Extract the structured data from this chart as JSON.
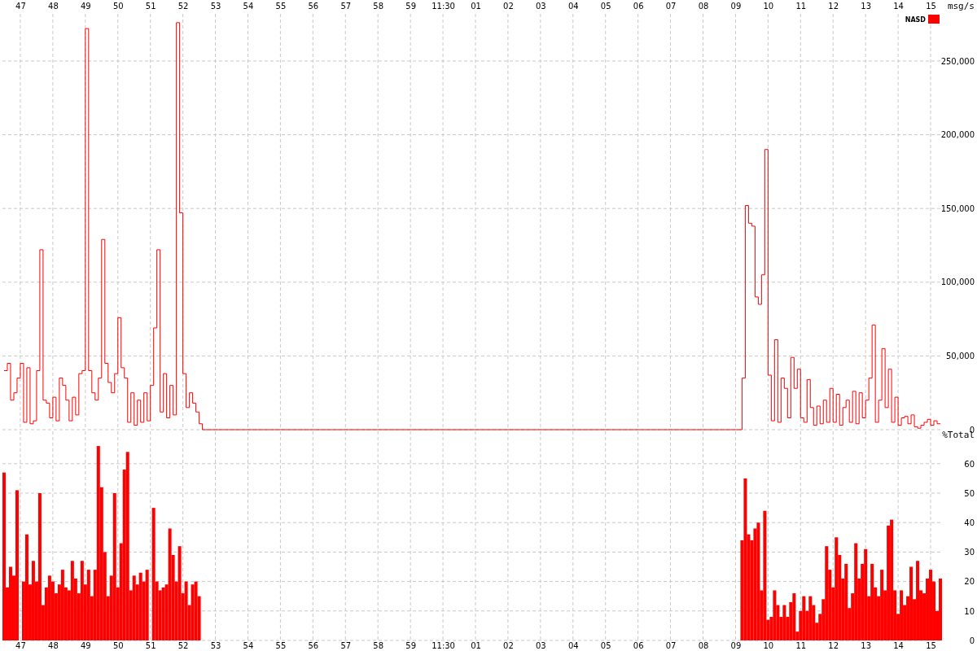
{
  "chart_data": [
    {
      "type": "step",
      "ylabel": "msg/s",
      "legend": "top right",
      "grid": true,
      "categories": [
        null,
        null,
        null,
        null,
        null,
        "47",
        null,
        null,
        null,
        null,
        null,
        null,
        null,
        null,
        null,
        "48",
        null,
        null,
        null,
        null,
        null,
        null,
        null,
        null,
        null,
        "49",
        null,
        null,
        null,
        null,
        null,
        null,
        null,
        null,
        null,
        "50",
        null,
        null,
        null,
        null,
        null,
        null,
        null,
        null,
        null,
        "51",
        null,
        null,
        null,
        null,
        null,
        null,
        null,
        null,
        null,
        "52",
        null,
        null,
        null,
        null,
        null,
        null,
        null,
        null,
        null,
        "53",
        null,
        null,
        null,
        null,
        null,
        null,
        null,
        null,
        null,
        "54",
        null,
        null,
        null,
        null,
        null,
        null,
        null,
        null,
        null,
        "55",
        null,
        null,
        null,
        null,
        null,
        null,
        null,
        null,
        null,
        "56",
        null,
        null,
        null,
        null,
        null,
        null,
        null,
        null,
        null,
        "57",
        null,
        null,
        null,
        null,
        null,
        null,
        null,
        null,
        null,
        "58",
        null,
        null,
        null,
        null,
        null,
        null,
        null,
        null,
        null,
        "59",
        null,
        null,
        null,
        null,
        null,
        null,
        null,
        null,
        null,
        "11:30",
        null,
        null,
        null,
        null,
        null,
        null,
        null,
        null,
        null,
        "01",
        null,
        null,
        null,
        null,
        null,
        null,
        null,
        null,
        null,
        "02",
        null,
        null,
        null,
        null,
        null,
        null,
        null,
        null,
        null,
        "03",
        null,
        null,
        null,
        null,
        null,
        null,
        null,
        null,
        null,
        "04",
        null,
        null,
        null,
        null,
        null,
        null,
        null,
        null,
        null,
        "05",
        null,
        null,
        null,
        null,
        null,
        null,
        null,
        null,
        null,
        "06",
        null,
        null,
        null,
        null,
        null,
        null,
        null,
        null,
        null,
        "07",
        null,
        null,
        null,
        null,
        null,
        null,
        null,
        null,
        null,
        "08",
        null,
        null,
        null,
        null,
        null,
        null,
        null,
        null,
        null,
        "09",
        null,
        null,
        null,
        null,
        null,
        null,
        null,
        null,
        null,
        "10",
        null,
        null,
        null,
        null,
        null,
        null,
        null,
        null,
        null,
        "11",
        null,
        null,
        null,
        null,
        null,
        null,
        null,
        null,
        null,
        "12",
        null,
        null,
        null,
        null,
        null,
        null,
        null,
        null,
        null,
        "13",
        null,
        null,
        null,
        null,
        null,
        null,
        null,
        null,
        null,
        "14",
        null,
        null,
        null,
        null,
        null,
        null,
        null,
        null,
        null,
        "15",
        null,
        null,
        null
      ],
      "ylim": [
        0,
        282000
      ],
      "yticks": [
        {
          "value": 0,
          "label": "0"
        },
        {
          "value": 50000,
          "label": "50,000"
        },
        {
          "value": 100000,
          "label": "100,000"
        },
        {
          "value": 150000,
          "label": "150,000"
        },
        {
          "value": 200000,
          "label": "200,000"
        },
        {
          "value": 250000,
          "label": "250,000"
        }
      ],
      "series": [
        {
          "name": "NASD",
          "color": "#ff0000",
          "values": [
            40000,
            45000,
            20000,
            25000,
            35000,
            45000,
            5000,
            42000,
            4000,
            6000,
            40000,
            122000,
            20000,
            18000,
            8000,
            22000,
            6000,
            35000,
            30000,
            20000,
            6000,
            22000,
            10000,
            38000,
            40000,
            272000,
            40000,
            25000,
            20000,
            35000,
            129000,
            45000,
            32000,
            25000,
            38000,
            76000,
            42000,
            35000,
            5000,
            25000,
            3000,
            20000,
            5000,
            25000,
            6000,
            30000,
            69000,
            122000,
            12000,
            38000,
            8000,
            30000,
            10000,
            276000,
            147000,
            38000,
            15000,
            25000,
            18000,
            12000,
            4000,
            0,
            0,
            0,
            0,
            0,
            0,
            0,
            0,
            0,
            0,
            0,
            0,
            0,
            0,
            0,
            0,
            0,
            0,
            0,
            0,
            0,
            0,
            0,
            0,
            0,
            0,
            0,
            0,
            0,
            0,
            0,
            0,
            0,
            0,
            0,
            0,
            0,
            0,
            0,
            0,
            0,
            0,
            0,
            0,
            0,
            0,
            0,
            0,
            0,
            0,
            0,
            0,
            0,
            0,
            0,
            0,
            0,
            0,
            0,
            0,
            0,
            0,
            0,
            0,
            0,
            0,
            0,
            0,
            0,
            0,
            0,
            0,
            0,
            0,
            0,
            0,
            0,
            0,
            0,
            0,
            0,
            0,
            0,
            0,
            0,
            0,
            0,
            0,
            0,
            0,
            0,
            0,
            0,
            0,
            0,
            0,
            0,
            0,
            0,
            0,
            0,
            0,
            0,
            0,
            0,
            0,
            0,
            0,
            0,
            0,
            0,
            0,
            0,
            0,
            0,
            0,
            0,
            0,
            0,
            0,
            0,
            0,
            0,
            0,
            0,
            0,
            0,
            0,
            0,
            0,
            0,
            0,
            0,
            0,
            0,
            0,
            0,
            0,
            0,
            0,
            0,
            0,
            0,
            0,
            0,
            0,
            0,
            0,
            0,
            0,
            0,
            0,
            0,
            0,
            0,
            0,
            0,
            0,
            0,
            0,
            0,
            0,
            0,
            0,
            0,
            0,
            35000,
            152000,
            140000,
            138000,
            90000,
            85000,
            105000,
            190000,
            37000,
            6000,
            61000,
            5000,
            35000,
            28000,
            8000,
            49000,
            28000,
            41000,
            8000,
            5000,
            34000,
            15000,
            3000,
            16000,
            4000,
            20000,
            5000,
            28000,
            5000,
            24000,
            3000,
            15000,
            20000,
            5000,
            26000,
            4000,
            25000,
            8000,
            20000,
            35000,
            71000,
            5000,
            20000,
            55000,
            15000,
            41000,
            5000,
            22000,
            3000,
            8000,
            9000,
            4000,
            10000,
            2000,
            1000,
            3000,
            5000,
            7000,
            3000,
            6000,
            4000,
            4000
          ]
        }
      ]
    },
    {
      "type": "bar",
      "ylabel": "%Total",
      "grid": true,
      "categories": [
        null,
        null,
        null,
        null,
        null,
        "47",
        null,
        null,
        null,
        null,
        null,
        null,
        null,
        null,
        null,
        "48",
        null,
        null,
        null,
        null,
        null,
        null,
        null,
        null,
        null,
        "49",
        null,
        null,
        null,
        null,
        null,
        null,
        null,
        null,
        null,
        "50",
        null,
        null,
        null,
        null,
        null,
        null,
        null,
        null,
        null,
        "51",
        null,
        null,
        null,
        null,
        null,
        null,
        null,
        null,
        null,
        "52",
        null,
        null,
        null,
        null,
        null,
        null,
        null,
        null,
        null,
        "53",
        null,
        null,
        null,
        null,
        null,
        null,
        null,
        null,
        null,
        "54",
        null,
        null,
        null,
        null,
        null,
        null,
        null,
        null,
        null,
        "55",
        null,
        null,
        null,
        null,
        null,
        null,
        null,
        null,
        null,
        "56",
        null,
        null,
        null,
        null,
        null,
        null,
        null,
        null,
        null,
        "57",
        null,
        null,
        null,
        null,
        null,
        null,
        null,
        null,
        null,
        "58",
        null,
        null,
        null,
        null,
        null,
        null,
        null,
        null,
        null,
        "59",
        null,
        null,
        null,
        null,
        null,
        null,
        null,
        null,
        null,
        "11:30",
        null,
        null,
        null,
        null,
        null,
        null,
        null,
        null,
        null,
        "01",
        null,
        null,
        null,
        null,
        null,
        null,
        null,
        null,
        null,
        "02",
        null,
        null,
        null,
        null,
        null,
        null,
        null,
        null,
        null,
        "03",
        null,
        null,
        null,
        null,
        null,
        null,
        null,
        null,
        null,
        "04",
        null,
        null,
        null,
        null,
        null,
        null,
        null,
        null,
        null,
        "05",
        null,
        null,
        null,
        null,
        null,
        null,
        null,
        null,
        null,
        "06",
        null,
        null,
        null,
        null,
        null,
        null,
        null,
        null,
        null,
        "07",
        null,
        null,
        null,
        null,
        null,
        null,
        null,
        null,
        null,
        "08",
        null,
        null,
        null,
        null,
        null,
        null,
        null,
        null,
        null,
        "09",
        null,
        null,
        null,
        null,
        null,
        null,
        null,
        null,
        null,
        "10",
        null,
        null,
        null,
        null,
        null,
        null,
        null,
        null,
        null,
        "11",
        null,
        null,
        null,
        null,
        null,
        null,
        null,
        null,
        null,
        "12",
        null,
        null,
        null,
        null,
        null,
        null,
        null,
        null,
        null,
        "13",
        null,
        null,
        null,
        null,
        null,
        null,
        null,
        null,
        null,
        "14",
        null,
        null,
        null,
        null,
        null,
        null,
        null,
        null,
        null,
        "15",
        null,
        null,
        null
      ],
      "ylim": [
        0,
        71
      ],
      "yticks": [
        0,
        10,
        20,
        30,
        40,
        50,
        60
      ],
      "series": [
        {
          "color": "#ff0000",
          "values": [
            57,
            18,
            25,
            22,
            51,
            null,
            20,
            36,
            19,
            27,
            20,
            50,
            12,
            18,
            22,
            20,
            16,
            19,
            24,
            18,
            17,
            27,
            21,
            16,
            27,
            19,
            24,
            15,
            24,
            66,
            52,
            30,
            15,
            22,
            50,
            18,
            33,
            58,
            64,
            17,
            22,
            19,
            23,
            20,
            24,
            null,
            45,
            20,
            17,
            18,
            19,
            38,
            29,
            20,
            32,
            16,
            20,
            12,
            19,
            20,
            15,
            null,
            null,
            null,
            null,
            null,
            null,
            null,
            null,
            null,
            null,
            null,
            null,
            null,
            null,
            null,
            null,
            null,
            null,
            null,
            null,
            null,
            null,
            null,
            null,
            null,
            null,
            null,
            null,
            null,
            null,
            null,
            null,
            null,
            null,
            null,
            null,
            null,
            null,
            null,
            null,
            null,
            null,
            null,
            null,
            null,
            null,
            null,
            null,
            null,
            null,
            null,
            null,
            null,
            null,
            null,
            null,
            null,
            null,
            null,
            null,
            null,
            null,
            null,
            null,
            null,
            null,
            null,
            null,
            null,
            null,
            null,
            null,
            null,
            null,
            null,
            null,
            null,
            null,
            null,
            null,
            null,
            null,
            null,
            null,
            null,
            null,
            null,
            null,
            null,
            null,
            null,
            null,
            null,
            null,
            null,
            null,
            null,
            null,
            null,
            null,
            null,
            null,
            null,
            null,
            null,
            null,
            null,
            null,
            null,
            null,
            null,
            null,
            null,
            null,
            null,
            null,
            null,
            null,
            null,
            null,
            null,
            null,
            null,
            null,
            null,
            null,
            null,
            null,
            null,
            null,
            null,
            null,
            null,
            null,
            null,
            null,
            null,
            null,
            null,
            null,
            null,
            null,
            null,
            null,
            null,
            null,
            null,
            null,
            null,
            null,
            null,
            null,
            null,
            null,
            null,
            null,
            null,
            null,
            null,
            null,
            null,
            null,
            null,
            null,
            null,
            null,
            34,
            55,
            36,
            34,
            38,
            40,
            17,
            44,
            7,
            8,
            17,
            12,
            8,
            12,
            8,
            13,
            16,
            3,
            10,
            15,
            10,
            15,
            12,
            6,
            9,
            14,
            32,
            24,
            18,
            35,
            29,
            21,
            26,
            11,
            16,
            33,
            21,
            26,
            31,
            15,
            26,
            18,
            15,
            24,
            17,
            39,
            41,
            17,
            9,
            17,
            12,
            15,
            25,
            14,
            27,
            17,
            16,
            21,
            24,
            20,
            10,
            21
          ]
        }
      ]
    }
  ]
}
